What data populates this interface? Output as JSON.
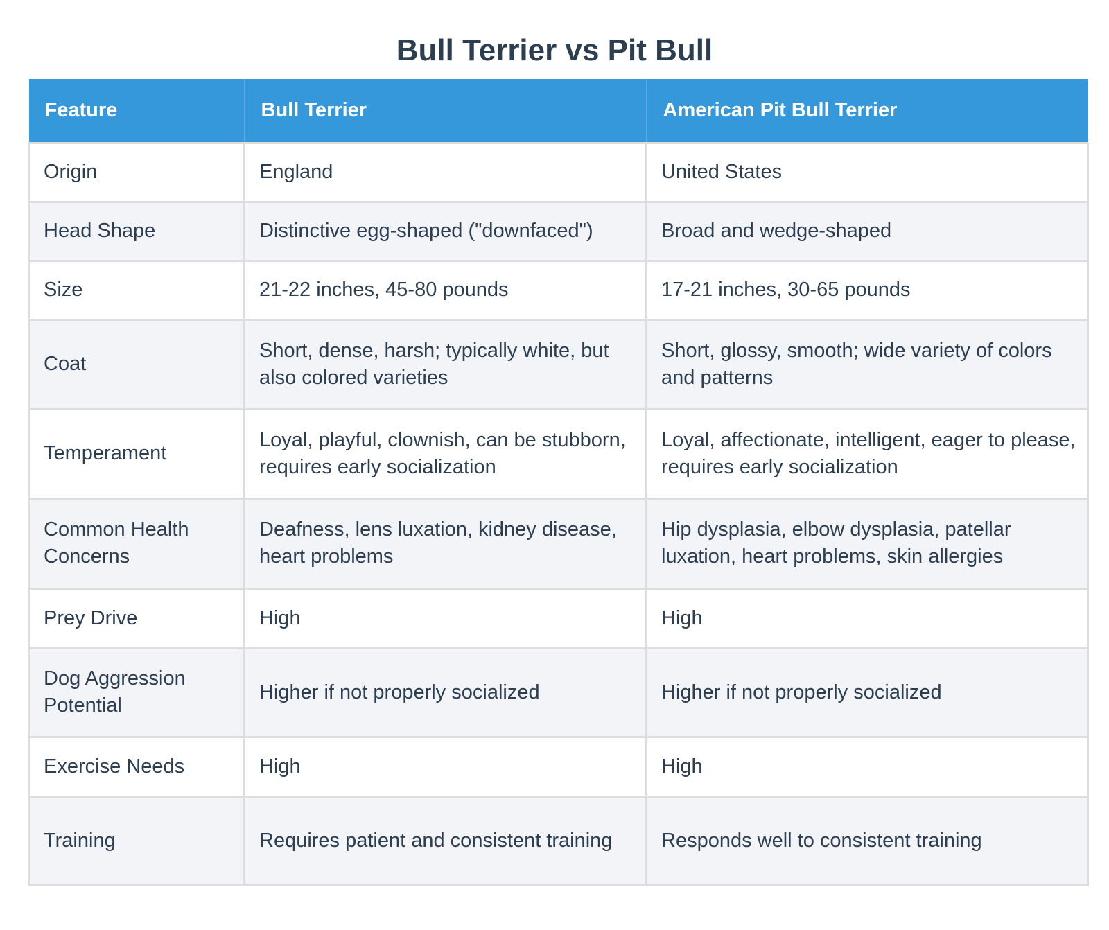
{
  "title": "Bull Terrier vs Pit Bull",
  "table": {
    "headers": [
      "Feature",
      "Bull Terrier",
      "American Pit Bull Terrier"
    ],
    "rows": [
      [
        "Origin",
        "England",
        "United States"
      ],
      [
        "Head Shape",
        "Distinctive egg-shaped (\"downfaced\")",
        "Broad and wedge-shaped"
      ],
      [
        "Size",
        "21-22 inches, 45-80 pounds",
        "17-21 inches, 30-65 pounds"
      ],
      [
        "Coat",
        "Short, dense, harsh; typically white, but also colored varieties",
        "Short, glossy, smooth; wide variety of colors and patterns"
      ],
      [
        "Temperament",
        "Loyal, playful, clownish, can be stubborn, requires early socialization",
        "Loyal, affectionate, intelligent, eager to please, requires early socialization"
      ],
      [
        "Common Health Concerns",
        "Deafness, lens luxation, kidney disease, heart problems",
        "Hip dysplasia, elbow dysplasia, patellar luxation, heart problems, skin allergies"
      ],
      [
        "Prey Drive",
        "High",
        "High"
      ],
      [
        "Dog Aggression Potential",
        "Higher if not properly socialized",
        "Higher if not properly socialized"
      ],
      [
        "Exercise Needs",
        "High",
        "High"
      ],
      [
        "Training",
        "Requires patient and consistent training",
        "Responds well to consistent training"
      ]
    ]
  },
  "colors": {
    "header_bg": "#3498db",
    "header_text": "#ffffff",
    "title_text": "#2c3e50",
    "row_alt_bg": "#f2f4f8",
    "border": "#dddddd"
  }
}
